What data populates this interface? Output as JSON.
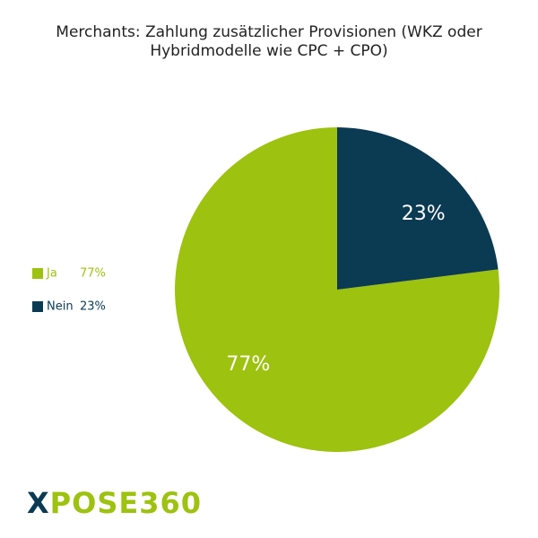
{
  "chart_data": {
    "type": "pie",
    "title": "Merchants: Zahlung zusätzlicher Provisionen (WKZ oder Hybridmodelle wie CPC + CPO)",
    "categories": [
      "Ja",
      "Nein"
    ],
    "values": [
      77,
      23
    ],
    "value_labels": [
      "77%",
      "23%"
    ],
    "colors": [
      "#9dc20f",
      "#0b3a53"
    ],
    "legend": "left"
  },
  "logo": "XPOSE360"
}
